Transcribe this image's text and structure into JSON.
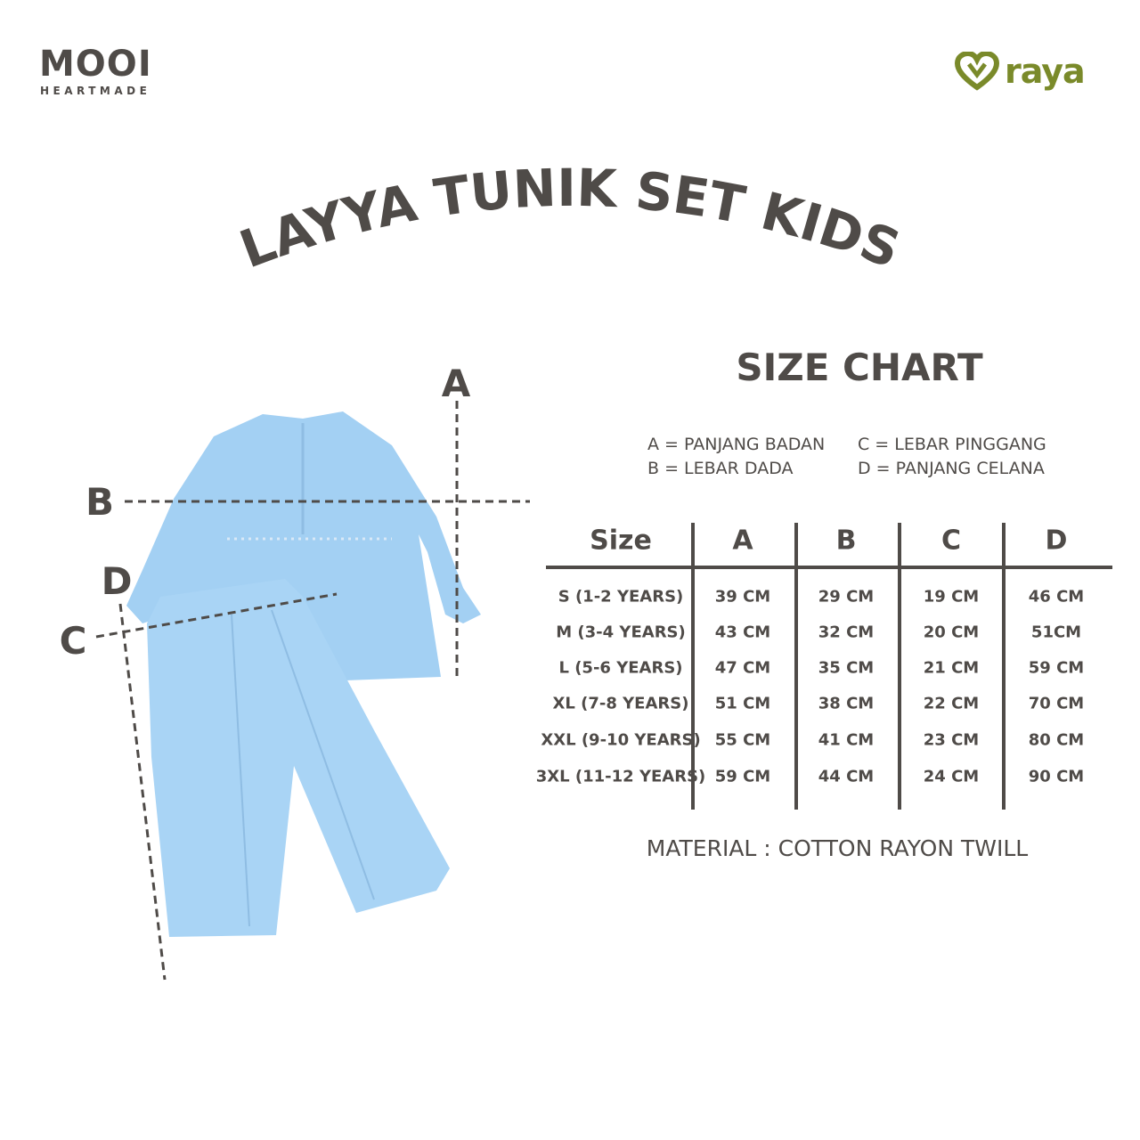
{
  "brand": {
    "name": "MOOI",
    "tagline": "HEARTMADE"
  },
  "partner": {
    "name": "raya",
    "color": "#7a8a2a"
  },
  "title": "LAYYA TUNIK SET KIDS",
  "size_chart": {
    "heading": "SIZE CHART",
    "legend": [
      "A = PANJANG BADAN",
      "B = LEBAR DADA",
      "C = LEBAR PINGGANG",
      "D = PANJANG CELANA"
    ],
    "columns": [
      "Size",
      "A",
      "B",
      "C",
      "D"
    ],
    "rows": [
      [
        "S (1-2 YEARS)",
        "39 CM",
        "29 CM",
        "19 CM",
        "46 CM"
      ],
      [
        "M (3-4 YEARS)",
        "43 CM",
        "32 CM",
        "20 CM",
        "51CM"
      ],
      [
        "L (5-6 YEARS)",
        "47 CM",
        "35 CM",
        "21 CM",
        "59 CM"
      ],
      [
        "XL (7-8 YEARS)",
        "51 CM",
        "38 CM",
        "22 CM",
        "70 CM"
      ],
      [
        "XXL (9-10 YEARS)",
        "55 CM",
        "41 CM",
        "23 CM",
        "80 CM"
      ],
      [
        "3XL (11-12 YEARS)",
        "59 CM",
        "44 CM",
        "24 CM",
        "90 CM"
      ]
    ],
    "material": "MATERIAL : COTTON RAYON TWILL"
  },
  "diagram": {
    "labels": {
      "a": "A",
      "b": "B",
      "c": "C",
      "d": "D"
    },
    "garment_color": "#a3d0f3"
  }
}
